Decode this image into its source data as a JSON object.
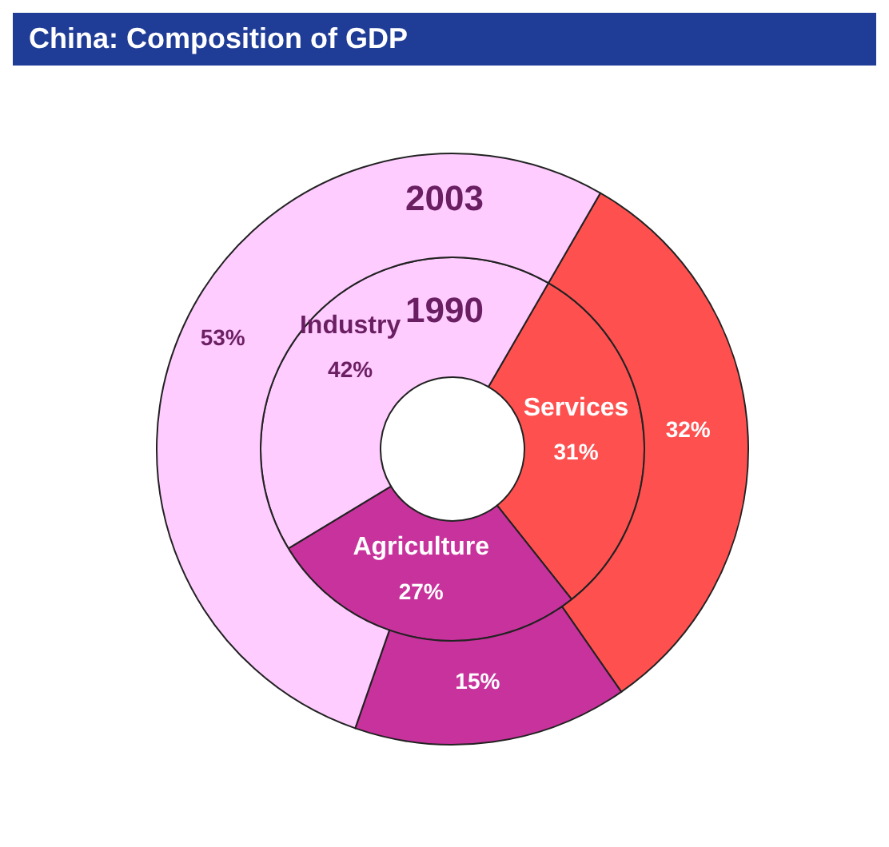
{
  "chart_data": {
    "type": "donut",
    "title": "China: Composition of GDP",
    "categories": [
      "Services",
      "Agriculture",
      "Industry"
    ],
    "colors": [
      "#ff5050",
      "#c8329c",
      "#ffccff"
    ],
    "series": [
      {
        "name": "1990",
        "values": [
          31,
          27,
          42
        ],
        "value_labels": [
          "31%",
          "27%",
          "42%"
        ]
      },
      {
        "name": "2003",
        "values": [
          32,
          15,
          53
        ],
        "value_labels": [
          "32%",
          "15%",
          "53%"
        ]
      }
    ],
    "legend": false
  }
}
